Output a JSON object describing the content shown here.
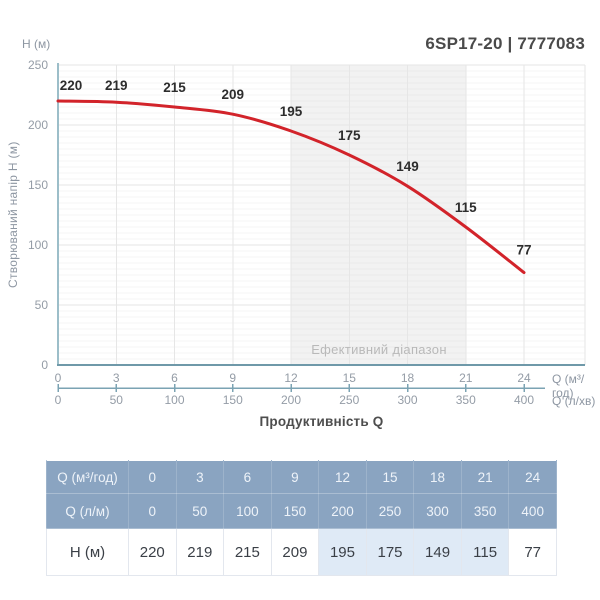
{
  "header": {
    "title": "6SP17-20 | 7777083"
  },
  "chart": {
    "y_unit_label": "H (м)",
    "ylabel": "Створюваний напір H (м)",
    "xlabel": "Продуктивність Q",
    "x1_unit": "Q (м³/год)",
    "x2_unit": "Q (л/хв)",
    "range_label": "Ефективний діапазон",
    "colors": {
      "curve": "#d2232a",
      "axis_bottom": "#6f99a9",
      "axis_left": "#9cbec9",
      "scale_line": "#7ba3b3",
      "grid": "#e6e6e6",
      "range_fill": "#f2f2f2",
      "tick_text": "#949ca6",
      "point_label": "#2d2d2d"
    }
  },
  "chart_data": {
    "type": "line",
    "title": "6SP17-20 | 7777083",
    "xlabel": "Продуктивність Q",
    "ylabel": "Створюваний напір H (м)",
    "x": [
      0,
      3,
      6,
      9,
      12,
      15,
      18,
      21,
      24
    ],
    "x_secondary": [
      0,
      50,
      100,
      150,
      200,
      250,
      300,
      350,
      400
    ],
    "series": [
      {
        "name": "H (м)",
        "values": [
          220,
          219,
          215,
          209,
          195,
          175,
          149,
          115,
          77
        ]
      }
    ],
    "xlim": [
      0,
      24
    ],
    "ylim": [
      0,
      250
    ],
    "y_ticks": [
      0,
      50,
      100,
      150,
      200,
      250
    ],
    "grid": true,
    "legend": false,
    "effective_range": {
      "from": 12,
      "to": 21
    }
  },
  "table": {
    "rows": [
      {
        "type": "header",
        "label": "Q (м³/год)",
        "values": [
          "0",
          "3",
          "6",
          "9",
          "12",
          "15",
          "18",
          "21",
          "24"
        ],
        "highlight_cols": []
      },
      {
        "type": "header",
        "label": "Q (л/м)",
        "values": [
          "0",
          "50",
          "100",
          "150",
          "200",
          "250",
          "300",
          "350",
          "400"
        ],
        "highlight_cols": []
      },
      {
        "type": "body",
        "label": "H (м)",
        "values": [
          "220",
          "219",
          "215",
          "209",
          "195",
          "175",
          "149",
          "115",
          "77"
        ],
        "highlight_cols": [
          4,
          5,
          6,
          7
        ]
      }
    ]
  }
}
